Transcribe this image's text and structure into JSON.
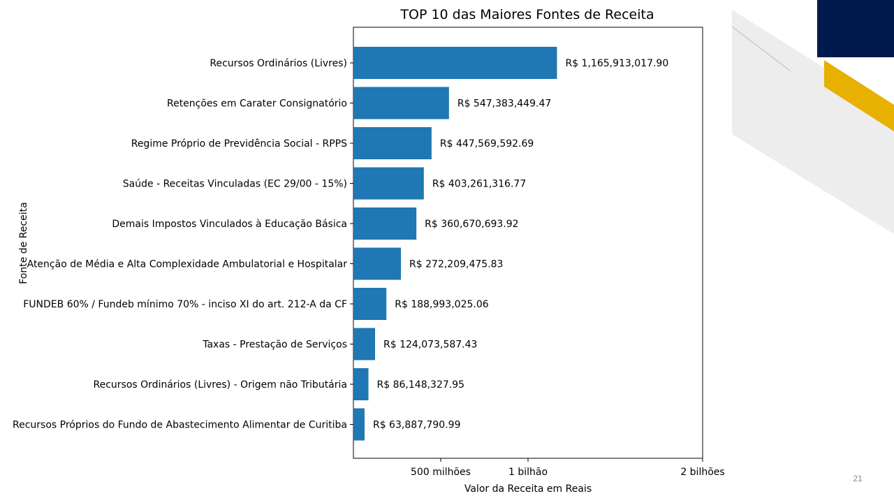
{
  "slide": {
    "number": "21",
    "accent_navy": "#001a4d",
    "accent_gold": "#e8b000",
    "decor_gray": "#ededed"
  },
  "chart_data": {
    "type": "bar",
    "orientation": "horizontal",
    "title": "TOP 10 das Maiores Fontes de Receita",
    "xlabel": "Valor da Receita em Reais",
    "ylabel": "Fonte de Receita",
    "bar_color": "#1f77b4",
    "xlim": [
      0,
      2000000000
    ],
    "xticks": [
      {
        "value": 500000000,
        "label": "500 milhões"
      },
      {
        "value": 1000000000,
        "label": "1 bilhão"
      },
      {
        "value": 2000000000,
        "label": "2 bilhões"
      }
    ],
    "grid": false,
    "categories": [
      "Recursos Ordinários (Livres)",
      "Retenções em Carater Consignatório",
      "Regime Próprio de Previdência Social - RPPS",
      "Saúde - Receitas Vinculadas (EC 29/00 - 15%)",
      "Demais Impostos Vinculados à Educação Básica",
      "Atenção de Média e Alta Complexidade Ambulatorial e Hospitalar",
      "FUNDEB 60% / Fundeb mínimo 70% - inciso XI do art. 212-A da CF",
      "Taxas - Prestação de Serviços",
      "Recursos Ordinários (Livres) - Origem não Tributária",
      "Recursos Próprios do Fundo de Abastecimento Alimentar de Curitiba"
    ],
    "values": [
      1165913017.9,
      547383449.47,
      447569592.69,
      403261316.77,
      360670693.92,
      272209475.83,
      188993025.06,
      124073587.43,
      86148327.95,
      63887790.99
    ],
    "value_labels": [
      "R$ 1,165,913,017.90",
      "R$ 547,383,449.47",
      "R$ 447,569,592.69",
      "R$ 403,261,316.77",
      "R$ 360,670,693.92",
      "R$ 272,209,475.83",
      "R$ 188,993,025.06",
      "R$ 124,073,587.43",
      "R$ 86,148,327.95",
      "R$ 63,887,790.99"
    ]
  }
}
